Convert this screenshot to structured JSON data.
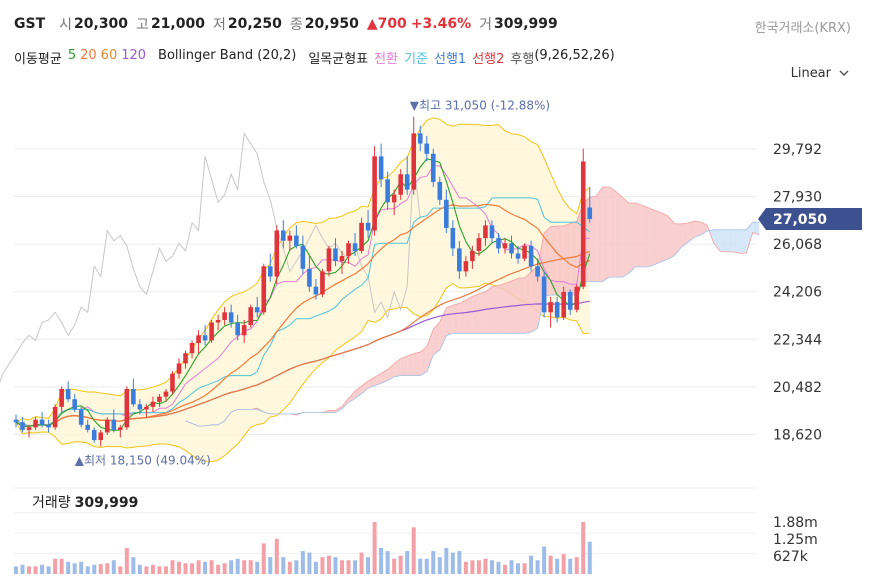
{
  "header": {
    "symbol": "GST",
    "open_label": "시",
    "open": "20,300",
    "high_label": "고",
    "high": "21,000",
    "low_label": "저",
    "low": "20,250",
    "close_label": "종",
    "close": "20,950",
    "change": "▲700",
    "change_pct": "+3.46%",
    "volume_label": "거",
    "volume": "309,999",
    "exchange": "한국거래소(KRX)"
  },
  "indicators": {
    "ma_label": "이동평균",
    "ma5": "5",
    "ma20": "20",
    "ma60": "60",
    "ma120": "120",
    "bollinger": "Bollinger Band (20,2)",
    "ichimoku_label": "일목균형표",
    "conversion": "전환",
    "base": "기준",
    "span1": "선행1",
    "span2": "선행2",
    "lagging": "후행",
    "ichimoku_params": "(9,26,52,26)"
  },
  "controls": {
    "scale": "Linear",
    "chevron_icon": "chevron-down-icon"
  },
  "colors": {
    "up": "#e0343c",
    "down": "#3b7ddd",
    "ma5": "#2ca02c",
    "ma20": "#f47b3a",
    "ma60": "#e87b3c",
    "ma120": "#9b5ad6",
    "bollinger": "#f0c419",
    "conversion": "#e77ad9",
    "base": "#4ec3d8",
    "span1_fill": "#f8c7c7",
    "span2_fill": "#cfe3f8"
  },
  "chart_data": {
    "type": "candlestick",
    "y_ticks": [
      "29,792",
      "27,930",
      "26,068",
      "24,206",
      "22,344",
      "20,482",
      "18,620"
    ],
    "ylim": [
      17700,
      31900
    ],
    "current_price": "27,050",
    "high_annotation": "▼최고 31,050 (-12.88%)",
    "low_annotation": "▲최저 18,150 (49.04%)",
    "candles": [
      [
        19200,
        19400,
        18900,
        19100
      ],
      [
        19100,
        19300,
        18700,
        18800
      ],
      [
        18800,
        19000,
        18500,
        18900
      ],
      [
        18900,
        19300,
        18800,
        19200
      ],
      [
        19200,
        19500,
        18900,
        19000
      ],
      [
        19000,
        19200,
        18700,
        18900
      ],
      [
        18900,
        19800,
        18800,
        19700
      ],
      [
        19700,
        20500,
        19500,
        20400
      ],
      [
        20400,
        20700,
        19900,
        20000
      ],
      [
        20000,
        20200,
        19500,
        19600
      ],
      [
        19600,
        19700,
        18900,
        19000
      ],
      [
        19000,
        19200,
        18700,
        18800
      ],
      [
        18800,
        18900,
        18300,
        18400
      ],
      [
        18400,
        18800,
        18150,
        18700
      ],
      [
        18700,
        19300,
        18600,
        19200
      ],
      [
        19200,
        19600,
        18700,
        18800
      ],
      [
        18800,
        19000,
        18500,
        18900
      ],
      [
        18900,
        20500,
        18800,
        20400
      ],
      [
        20400,
        20800,
        19700,
        19800
      ],
      [
        19800,
        20000,
        19400,
        19600
      ],
      [
        19600,
        19800,
        19300,
        19700
      ],
      [
        19700,
        20100,
        19500,
        19900
      ],
      [
        19900,
        20200,
        19700,
        20100
      ],
      [
        20100,
        20400,
        19900,
        20300
      ],
      [
        20300,
        21100,
        20200,
        21000
      ],
      [
        21000,
        21600,
        20800,
        21400
      ],
      [
        21400,
        21900,
        21200,
        21800
      ],
      [
        21800,
        22300,
        21600,
        22200
      ],
      [
        22200,
        22700,
        21800,
        22500
      ],
      [
        22500,
        22900,
        22100,
        22300
      ],
      [
        22300,
        23100,
        22200,
        23000
      ],
      [
        23000,
        23300,
        22700,
        23100
      ],
      [
        23100,
        23600,
        22900,
        23400
      ],
      [
        23400,
        23700,
        22800,
        23000
      ],
      [
        23000,
        23300,
        22300,
        22500
      ],
      [
        22500,
        23100,
        22200,
        22900
      ],
      [
        22900,
        23700,
        22800,
        23600
      ],
      [
        23600,
        24000,
        23200,
        23400
      ],
      [
        23400,
        25300,
        23300,
        25200
      ],
      [
        25200,
        25700,
        24600,
        24800
      ],
      [
        24800,
        26800,
        24500,
        26600
      ],
      [
        26600,
        27000,
        25900,
        26200
      ],
      [
        26200,
        26600,
        25800,
        26400
      ],
      [
        26400,
        26800,
        25900,
        26000
      ],
      [
        26000,
        26400,
        24900,
        25100
      ],
      [
        25100,
        25600,
        24200,
        24400
      ],
      [
        24400,
        24700,
        23900,
        24100
      ],
      [
        24100,
        25100,
        24000,
        25000
      ],
      [
        25000,
        26000,
        24800,
        25900
      ],
      [
        25900,
        26300,
        25200,
        25400
      ],
      [
        25400,
        25800,
        24900,
        25600
      ],
      [
        25600,
        26200,
        25300,
        26100
      ],
      [
        26100,
        26500,
        25600,
        25800
      ],
      [
        25800,
        27100,
        25700,
        26900
      ],
      [
        26900,
        27400,
        26300,
        26600
      ],
      [
        26600,
        29900,
        26400,
        29500
      ],
      [
        29500,
        30000,
        28300,
        28600
      ],
      [
        28600,
        28900,
        27400,
        27700
      ],
      [
        27700,
        28200,
        27200,
        28000
      ],
      [
        28000,
        29000,
        27800,
        28800
      ],
      [
        28800,
        29500,
        28000,
        28200
      ],
      [
        28200,
        31050,
        28000,
        30400
      ],
      [
        30400,
        30700,
        29700,
        30000
      ],
      [
        30000,
        30300,
        29300,
        29600
      ],
      [
        29600,
        29800,
        28300,
        28500
      ],
      [
        28500,
        28700,
        27600,
        27800
      ],
      [
        27800,
        28200,
        26500,
        26700
      ],
      [
        26700,
        27000,
        25600,
        25900
      ],
      [
        25900,
        26200,
        24700,
        25000
      ],
      [
        25000,
        25600,
        24800,
        25400
      ],
      [
        25400,
        26000,
        25100,
        25800
      ],
      [
        25800,
        26500,
        25600,
        26300
      ],
      [
        26300,
        27000,
        26000,
        26800
      ],
      [
        26800,
        27000,
        26100,
        26300
      ],
      [
        26300,
        26500,
        25700,
        25900
      ],
      [
        25900,
        26300,
        25700,
        26100
      ],
      [
        26100,
        26400,
        25500,
        25700
      ],
      [
        25700,
        26000,
        25300,
        25500
      ],
      [
        25500,
        26100,
        25400,
        26000
      ],
      [
        26000,
        26200,
        25000,
        25200
      ],
      [
        25200,
        25500,
        24600,
        24800
      ],
      [
        24800,
        25000,
        23200,
        23400
      ],
      [
        23400,
        24000,
        22800,
        23800
      ],
      [
        23800,
        24000,
        23000,
        23200
      ],
      [
        23200,
        24400,
        23100,
        24200
      ],
      [
        24200,
        24300,
        23300,
        23500
      ],
      [
        23500,
        24500,
        23400,
        24400
      ],
      [
        24400,
        29800,
        24300,
        29300
      ],
      [
        27500,
        28300,
        26900,
        27050
      ]
    ],
    "volume_ticks": [
      "1.88m",
      "1.25m",
      "627k"
    ],
    "volume_title": "거래량",
    "volume_value": "309,999"
  }
}
